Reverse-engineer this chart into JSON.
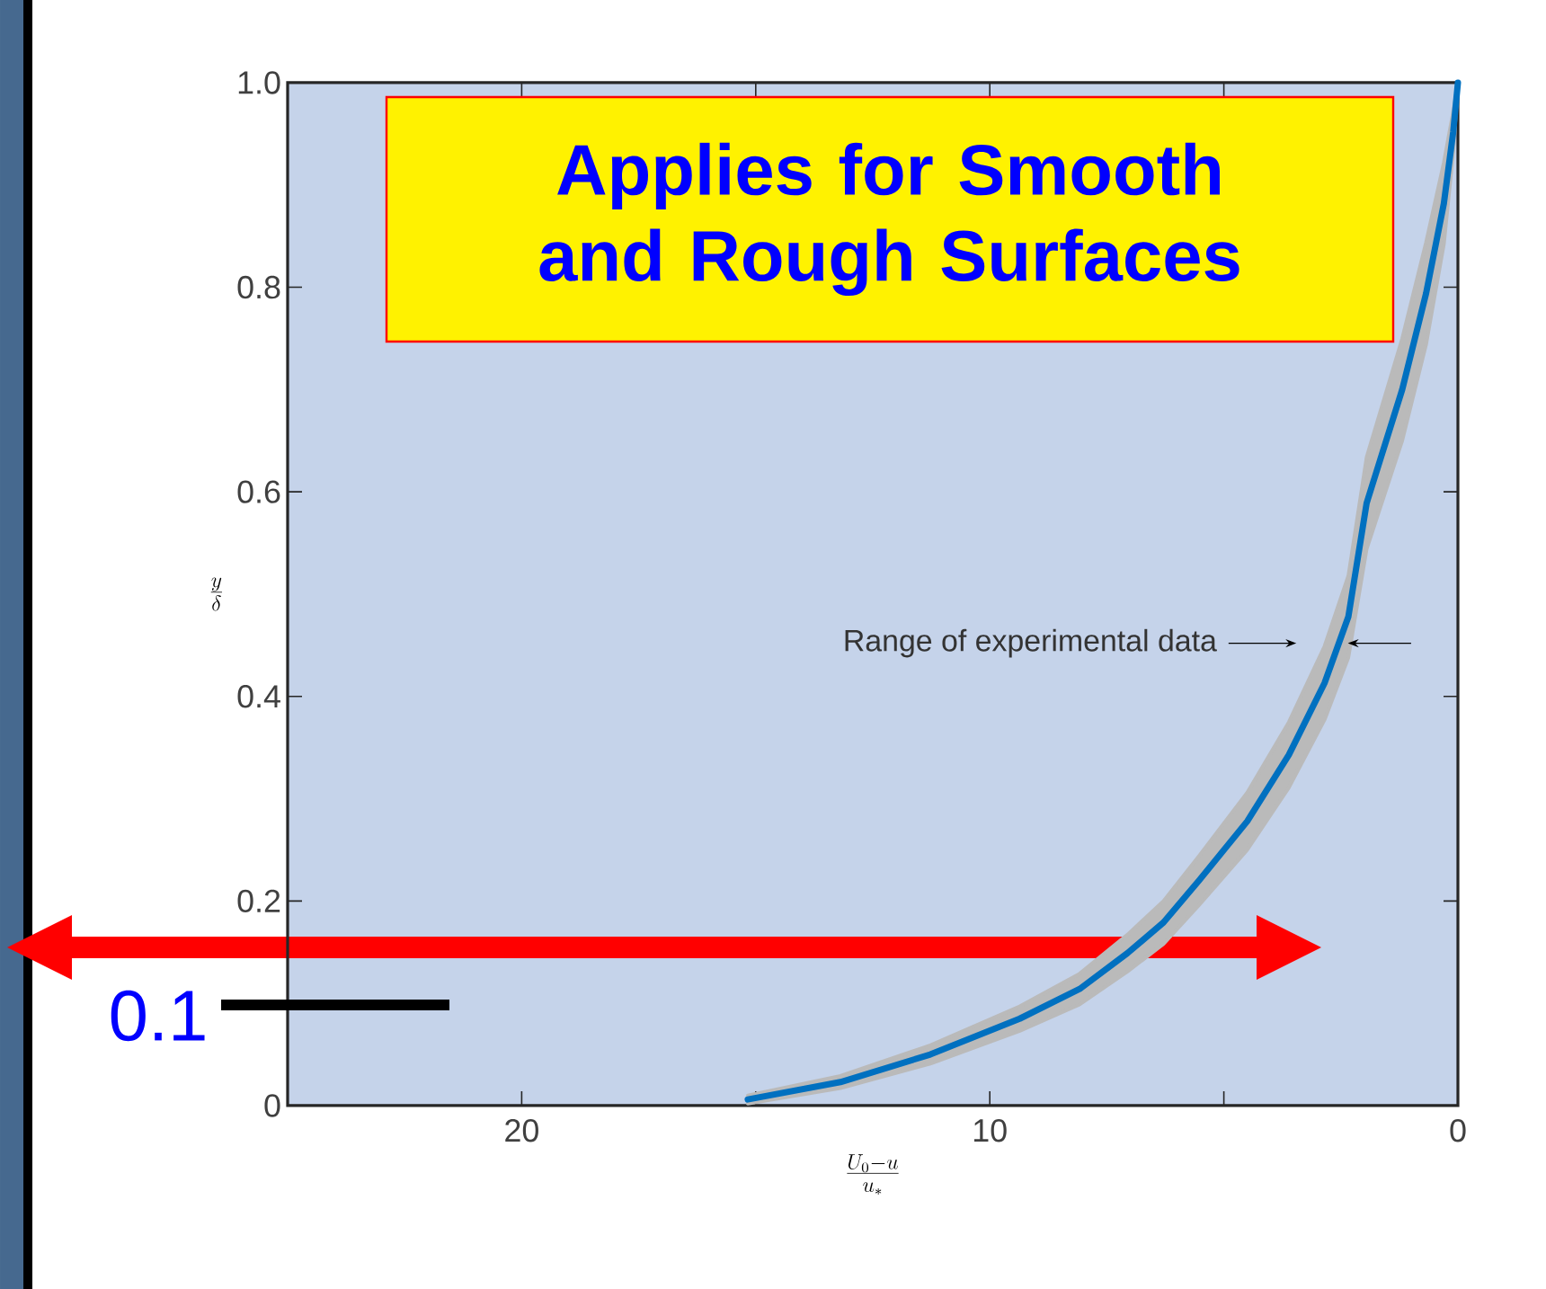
{
  "chart_data": {
    "type": "line",
    "xlabel": "\\frac{U_0-u}{u_*}",
    "ylabel": "\\frac{y}{\\delta}",
    "series": [
      {
        "color": "#0070c0",
        "x": [
          15.17,
          13.19,
          11.27,
          9.36,
          8.08,
          7.06,
          6.29,
          5.53,
          4.5,
          3.61,
          2.85,
          2.34,
          1.95,
          1.19,
          0.68,
          0.3,
          0.1,
          0
        ],
        "values": [
          0.006,
          0.023,
          0.05,
          0.085,
          0.114,
          0.149,
          0.179,
          0.22,
          0.278,
          0.343,
          0.413,
          0.478,
          0.589,
          0.7,
          0.794,
          0.882,
          0.952,
          1.0
        ],
        "lower": [
          0.002,
          0.017,
          0.041,
          0.073,
          0.099,
          0.131,
          0.158,
          0.196,
          0.25,
          0.311,
          0.377,
          0.438,
          0.544,
          0.65,
          0.744,
          0.842,
          0.932,
          1.0
        ],
        "upper": [
          0.01,
          0.029,
          0.059,
          0.097,
          0.129,
          0.167,
          0.2,
          0.244,
          0.306,
          0.375,
          0.449,
          0.518,
          0.634,
          0.75,
          0.844,
          0.922,
          0.972,
          1.0
        ]
      }
    ],
    "xlim": [
      25,
      0
    ],
    "ylim": [
      0,
      1
    ],
    "xticks": [
      0,
      {
        "value": 5,
        "label": null
      },
      10,
      {
        "value": 15,
        "label": null
      },
      20
    ],
    "yticks": [
      0,
      0.2,
      0.4,
      0.6,
      0.8,
      {
        "value": 1,
        "label": "1.0"
      }
    ],
    "grid": false,
    "marker": "none",
    "line_style": "solid",
    "annotations": [
      "Applies for Smooth and Rough Surfaces",
      "Range of experimental data",
      "0.1"
    ]
  }
}
